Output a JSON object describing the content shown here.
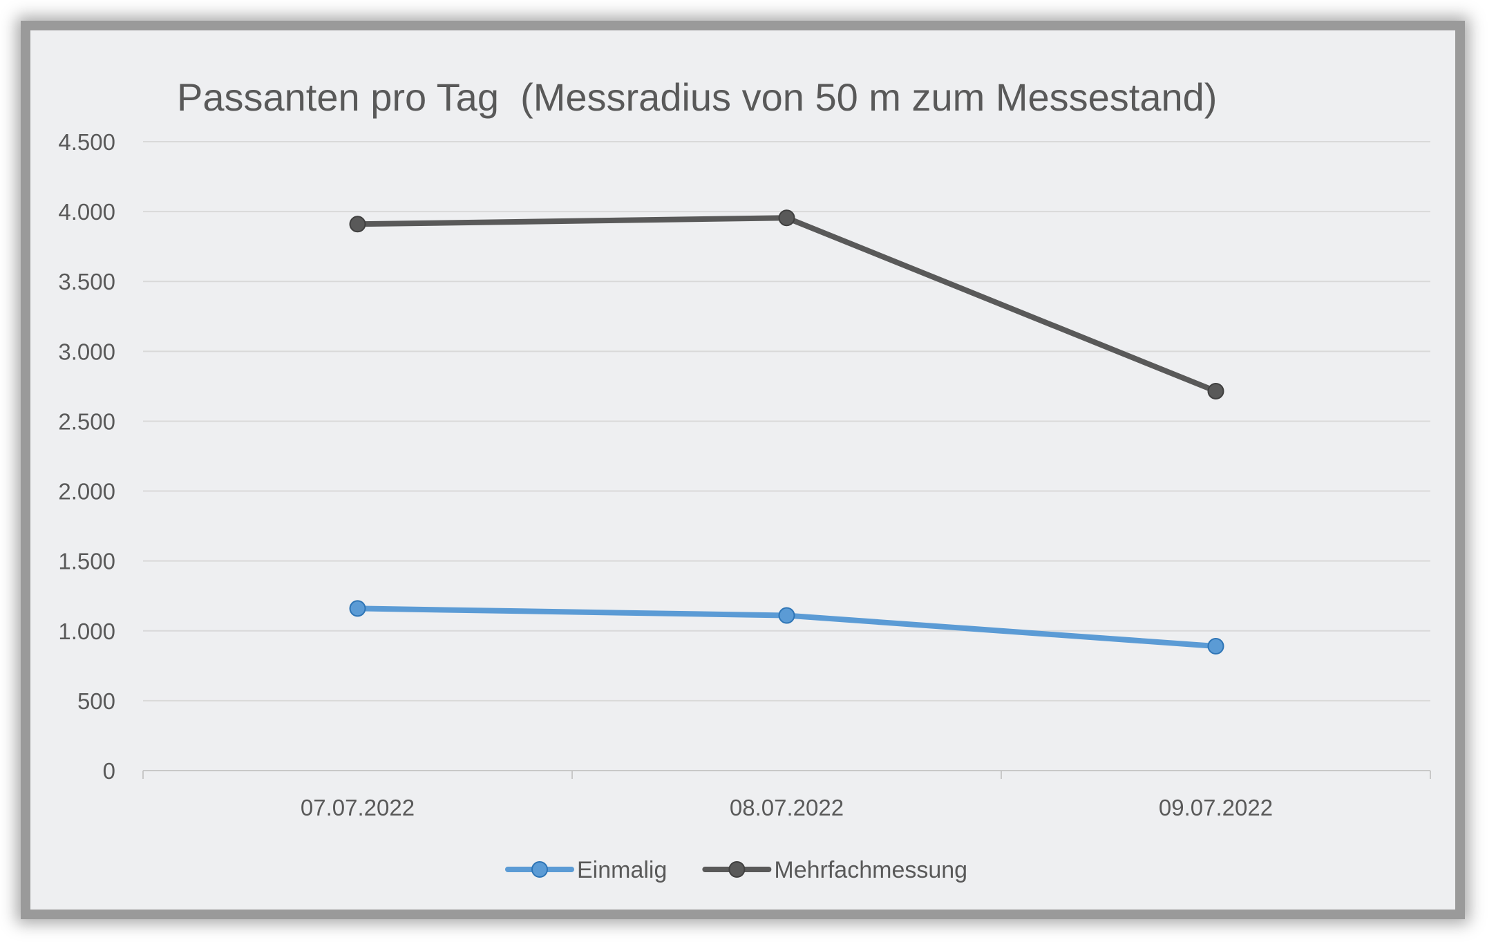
{
  "chart_data": {
    "type": "line",
    "title": "Passanten pro Tag  (Messradius von 50 m zum Messestand)",
    "xlabel": "",
    "ylabel": "",
    "categories": [
      "07.07.2022",
      "08.07.2022",
      "09.07.2022"
    ],
    "ylim": [
      0,
      4500
    ],
    "yticks": [
      0,
      500,
      1000,
      1500,
      2000,
      2500,
      3000,
      3500,
      4000,
      4500
    ],
    "ytick_labels": [
      "0",
      "500",
      "1.000",
      "1.500",
      "2.000",
      "2.500",
      "3.000",
      "3.500",
      "4.000",
      "4.500"
    ],
    "grid": true,
    "legend_position": "bottom",
    "series": [
      {
        "name": "Einmalig",
        "values": [
          1160,
          1110,
          890
        ],
        "color": "#5b9bd5"
      },
      {
        "name": "Mehrfachmessung",
        "values": [
          3910,
          3955,
          2715
        ],
        "color": "#595959"
      }
    ]
  },
  "colors": {
    "background": "#eeeff1",
    "grid": "#d9d9d9",
    "text": "#595959"
  }
}
